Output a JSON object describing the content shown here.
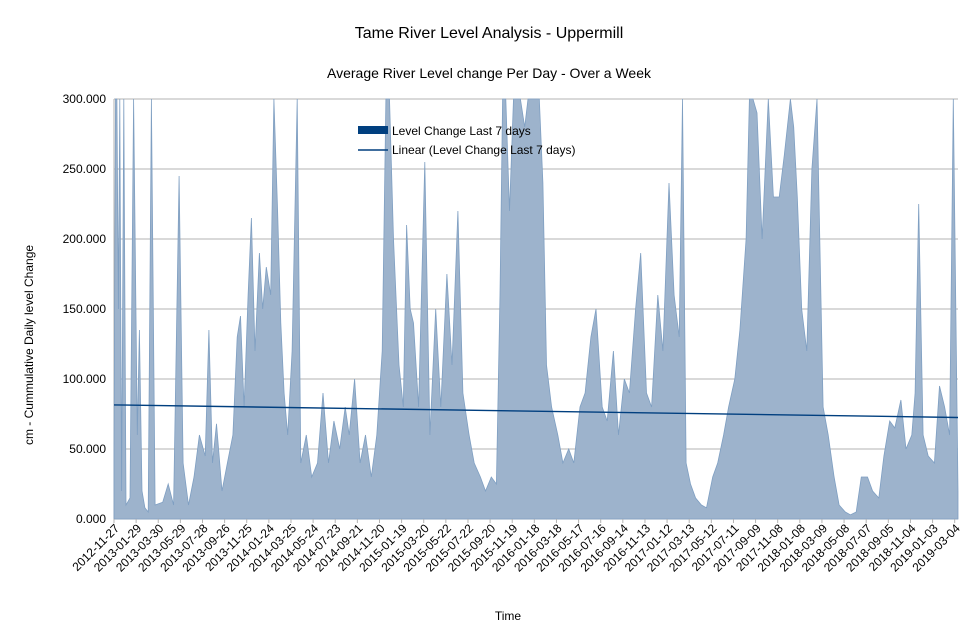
{
  "chart_data": {
    "type": "area",
    "title": "Tame River Level Analysis - Uppermill",
    "subtitle": "Average River Level change Per Day -  Over a Week",
    "xlabel": "Time",
    "ylabel": "cm - Cummulative Daily level Change",
    "ylim": [
      0,
      300
    ],
    "y_ticks": [
      "0.000",
      "50.000",
      "100.000",
      "150.000",
      "200.000",
      "250.000",
      "300.000"
    ],
    "x_ticks": [
      "2012-11-27",
      "2013-01-29",
      "2013-03-30",
      "2013-05-29",
      "2013-07-28",
      "2013-09-26",
      "2013-11-25",
      "2014-01-24",
      "2014-03-25",
      "2014-05-24",
      "2014-07-23",
      "2014-09-21",
      "2014-11-20",
      "2015-01-19",
      "2015-03-20",
      "2015-05-22",
      "2015-07-22",
      "2015-09-20",
      "2015-11-19",
      "2016-01-18",
      "2016-03-18",
      "2016-05-17",
      "2016-07-16",
      "2016-09-14",
      "2016-11-13",
      "2017-01-12",
      "2017-03-13",
      "2017-05-12",
      "2017-07-11",
      "2017-09-09",
      "2017-11-08",
      "2018-01-08",
      "2018-03-09",
      "2018-05-08",
      "2018-07-07",
      "2018-09-05",
      "2018-11-04",
      "2019-01-03",
      "2019-03-04"
    ],
    "x_range": [
      "2012-11-27",
      "2019-04-07"
    ],
    "grid": true,
    "legend_position": "top-center",
    "series": [
      {
        "name": "Level Change Last 7 days",
        "style": "area",
        "color": "#9db3cc",
        "edge_color": "#7f9fc2",
        "legend_color": "#003f7f",
        "points": [
          [
            "2012-11-27",
            50
          ],
          [
            "2012-12-01",
            300
          ],
          [
            "2012-12-05",
            300
          ],
          [
            "2012-12-09",
            150
          ],
          [
            "2012-12-13",
            300
          ],
          [
            "2012-12-18",
            20
          ],
          [
            "2012-12-24",
            300
          ],
          [
            "2012-12-30",
            10
          ],
          [
            "2013-01-10",
            15
          ],
          [
            "2013-01-20",
            300
          ],
          [
            "2013-01-30",
            60
          ],
          [
            "2013-02-05",
            135
          ],
          [
            "2013-02-12",
            20
          ],
          [
            "2013-02-20",
            8
          ],
          [
            "2013-03-01",
            5
          ],
          [
            "2013-03-10",
            300
          ],
          [
            "2013-03-20",
            10
          ],
          [
            "2013-04-10",
            12
          ],
          [
            "2013-04-25",
            25
          ],
          [
            "2013-05-10",
            10
          ],
          [
            "2013-05-25",
            245
          ],
          [
            "2013-06-05",
            40
          ],
          [
            "2013-06-20",
            10
          ],
          [
            "2013-07-05",
            30
          ],
          [
            "2013-07-20",
            60
          ],
          [
            "2013-08-05",
            45
          ],
          [
            "2013-08-15",
            135
          ],
          [
            "2013-08-25",
            40
          ],
          [
            "2013-09-05",
            68
          ],
          [
            "2013-09-20",
            20
          ],
          [
            "2013-10-05",
            40
          ],
          [
            "2013-10-20",
            60
          ],
          [
            "2013-11-01",
            130
          ],
          [
            "2013-11-10",
            145
          ],
          [
            "2013-11-20",
            80
          ],
          [
            "2013-12-01",
            160
          ],
          [
            "2013-12-10",
            215
          ],
          [
            "2013-12-20",
            120
          ],
          [
            "2014-01-01",
            190
          ],
          [
            "2014-01-10",
            150
          ],
          [
            "2014-01-20",
            180
          ],
          [
            "2014-02-01",
            160
          ],
          [
            "2014-02-10",
            300
          ],
          [
            "2014-02-20",
            220
          ],
          [
            "2014-03-01",
            140
          ],
          [
            "2014-03-10",
            90
          ],
          [
            "2014-03-20",
            60
          ],
          [
            "2014-04-01",
            120
          ],
          [
            "2014-04-15",
            300
          ],
          [
            "2014-04-25",
            40
          ],
          [
            "2014-05-10",
            60
          ],
          [
            "2014-05-25",
            30
          ],
          [
            "2014-06-10",
            40
          ],
          [
            "2014-06-25",
            90
          ],
          [
            "2014-07-10",
            40
          ],
          [
            "2014-07-25",
            70
          ],
          [
            "2014-08-10",
            50
          ],
          [
            "2014-08-25",
            80
          ],
          [
            "2014-09-05",
            60
          ],
          [
            "2014-09-20",
            100
          ],
          [
            "2014-10-05",
            40
          ],
          [
            "2014-10-20",
            60
          ],
          [
            "2014-11-05",
            30
          ],
          [
            "2014-11-20",
            60
          ],
          [
            "2014-12-05",
            120
          ],
          [
            "2014-12-15",
            300
          ],
          [
            "2014-12-25",
            300
          ],
          [
            "2015-01-05",
            200
          ],
          [
            "2015-01-20",
            110
          ],
          [
            "2015-02-01",
            80
          ],
          [
            "2015-02-10",
            210
          ],
          [
            "2015-02-20",
            150
          ],
          [
            "2015-03-01",
            140
          ],
          [
            "2015-03-15",
            80
          ],
          [
            "2015-04-01",
            255
          ],
          [
            "2015-04-15",
            60
          ],
          [
            "2015-05-01",
            150
          ],
          [
            "2015-05-15",
            80
          ],
          [
            "2015-06-01",
            175
          ],
          [
            "2015-06-15",
            110
          ],
          [
            "2015-07-01",
            220
          ],
          [
            "2015-07-15",
            90
          ],
          [
            "2015-08-01",
            60
          ],
          [
            "2015-08-15",
            40
          ],
          [
            "2015-09-01",
            30
          ],
          [
            "2015-09-15",
            20
          ],
          [
            "2015-10-01",
            30
          ],
          [
            "2015-10-15",
            25
          ],
          [
            "2015-10-25",
            160
          ],
          [
            "2015-11-01",
            300
          ],
          [
            "2015-11-10",
            300
          ],
          [
            "2015-11-20",
            220
          ],
          [
            "2015-12-01",
            300
          ],
          [
            "2015-12-10",
            300
          ],
          [
            "2015-12-20",
            300
          ],
          [
            "2016-01-01",
            280
          ],
          [
            "2016-01-10",
            300
          ],
          [
            "2016-01-20",
            300
          ],
          [
            "2016-02-01",
            300
          ],
          [
            "2016-02-10",
            300
          ],
          [
            "2016-02-20",
            240
          ],
          [
            "2016-03-01",
            110
          ],
          [
            "2016-03-15",
            80
          ],
          [
            "2016-04-01",
            60
          ],
          [
            "2016-04-15",
            40
          ],
          [
            "2016-05-01",
            50
          ],
          [
            "2016-05-15",
            40
          ],
          [
            "2016-06-01",
            80
          ],
          [
            "2016-06-15",
            90
          ],
          [
            "2016-07-01",
            130
          ],
          [
            "2016-07-15",
            150
          ],
          [
            "2016-08-01",
            80
          ],
          [
            "2016-08-15",
            70
          ],
          [
            "2016-09-01",
            120
          ],
          [
            "2016-09-15",
            60
          ],
          [
            "2016-10-01",
            100
          ],
          [
            "2016-10-15",
            90
          ],
          [
            "2016-11-01",
            150
          ],
          [
            "2016-11-15",
            190
          ],
          [
            "2016-12-01",
            90
          ],
          [
            "2016-12-15",
            80
          ],
          [
            "2017-01-01",
            160
          ],
          [
            "2017-01-15",
            120
          ],
          [
            "2017-02-01",
            240
          ],
          [
            "2017-02-15",
            160
          ],
          [
            "2017-03-01",
            130
          ],
          [
            "2017-03-10",
            300
          ],
          [
            "2017-03-20",
            40
          ],
          [
            "2017-04-01",
            25
          ],
          [
            "2017-04-15",
            15
          ],
          [
            "2017-05-01",
            10
          ],
          [
            "2017-05-15",
            8
          ],
          [
            "2017-06-01",
            30
          ],
          [
            "2017-06-15",
            40
          ],
          [
            "2017-07-01",
            60
          ],
          [
            "2017-07-15",
            80
          ],
          [
            "2017-08-01",
            100
          ],
          [
            "2017-08-15",
            135
          ],
          [
            "2017-09-01",
            200
          ],
          [
            "2017-09-10",
            300
          ],
          [
            "2017-09-20",
            300
          ],
          [
            "2017-10-01",
            290
          ],
          [
            "2017-10-15",
            200
          ],
          [
            "2017-11-01",
            300
          ],
          [
            "2017-11-15",
            230
          ],
          [
            "2017-12-01",
            230
          ],
          [
            "2017-12-15",
            260
          ],
          [
            "2018-01-01",
            300
          ],
          [
            "2018-01-10",
            280
          ],
          [
            "2018-01-20",
            230
          ],
          [
            "2018-02-01",
            150
          ],
          [
            "2018-02-15",
            120
          ],
          [
            "2018-03-01",
            250
          ],
          [
            "2018-03-15",
            300
          ],
          [
            "2018-04-01",
            80
          ],
          [
            "2018-04-15",
            60
          ],
          [
            "2018-05-01",
            30
          ],
          [
            "2018-05-15",
            10
          ],
          [
            "2018-06-01",
            5
          ],
          [
            "2018-06-15",
            3
          ],
          [
            "2018-07-01",
            5
          ],
          [
            "2018-07-15",
            30
          ],
          [
            "2018-08-01",
            30
          ],
          [
            "2018-08-15",
            20
          ],
          [
            "2018-09-01",
            15
          ],
          [
            "2018-09-15",
            45
          ],
          [
            "2018-10-01",
            70
          ],
          [
            "2018-10-15",
            65
          ],
          [
            "2018-11-01",
            85
          ],
          [
            "2018-11-15",
            50
          ],
          [
            "2018-12-01",
            60
          ],
          [
            "2018-12-10",
            90
          ],
          [
            "2018-12-20",
            225
          ],
          [
            "2019-01-01",
            60
          ],
          [
            "2019-01-15",
            45
          ],
          [
            "2019-02-01",
            40
          ],
          [
            "2019-02-15",
            95
          ],
          [
            "2019-03-01",
            80
          ],
          [
            "2019-03-15",
            60
          ],
          [
            "2019-03-25",
            300
          ],
          [
            "2019-04-07",
            20
          ]
        ]
      },
      {
        "name": "Linear (Level Change Last 7 days)",
        "style": "line",
        "color": "#003f7f",
        "points": [
          [
            "2012-11-27",
            81.5
          ],
          [
            "2019-04-07",
            72.5
          ]
        ]
      }
    ]
  }
}
